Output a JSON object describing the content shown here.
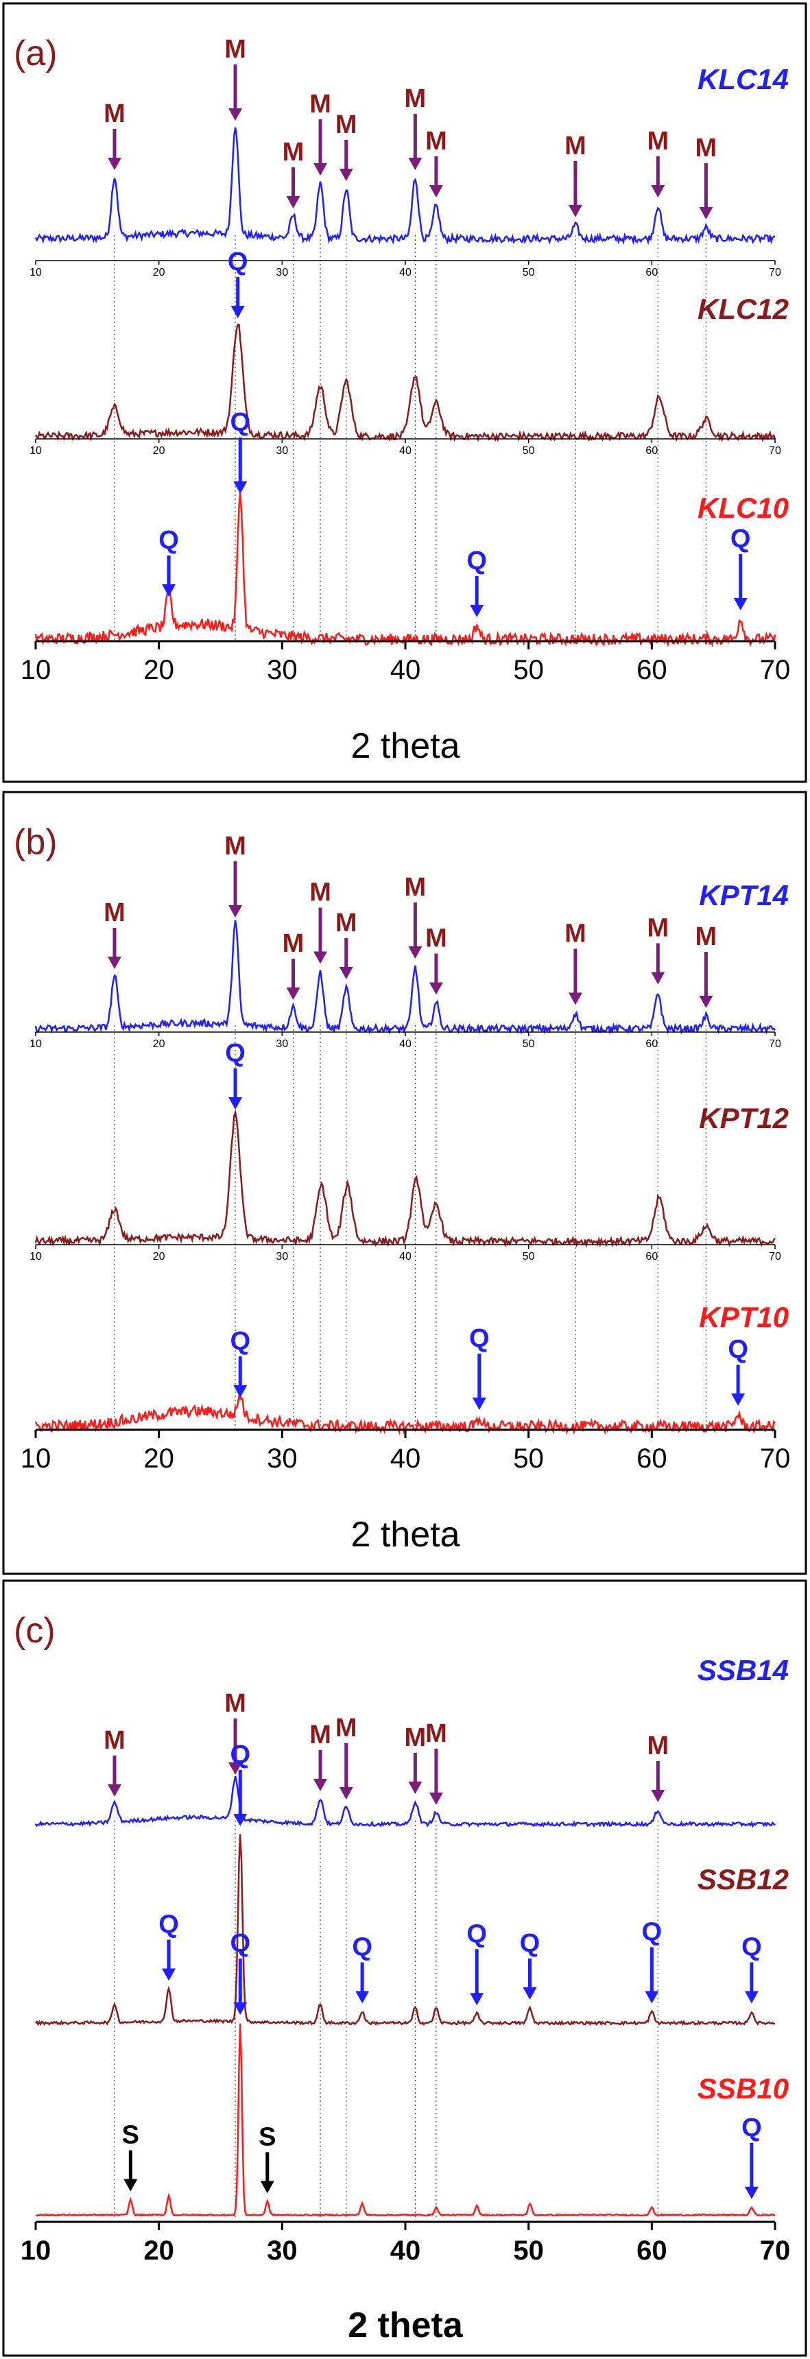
{
  "figure": {
    "panels": [
      {
        "label": "(a)",
        "xlabel": "2 theta",
        "xlim": [
          10,
          70
        ],
        "ticks": [
          10,
          20,
          30,
          40,
          50,
          60,
          70
        ],
        "traces": [
          {
            "name": "KLC14",
            "color": "#1f1fff"
          },
          {
            "name": "KLC12",
            "color": "#8b1a1a"
          },
          {
            "name": "KLC10",
            "color": "#ff1a1a"
          }
        ]
      },
      {
        "label": "(b)",
        "xlabel": "2 theta",
        "xlim": [
          10,
          70
        ],
        "ticks": [
          10,
          20,
          30,
          40,
          50,
          60,
          70
        ],
        "traces": [
          {
            "name": "KPT14",
            "color": "#1f1fff"
          },
          {
            "name": "KPT12",
            "color": "#8b1a1a"
          },
          {
            "name": "KPT10",
            "color": "#ff1a1a"
          }
        ]
      },
      {
        "label": "(c)",
        "xlabel": "2 theta",
        "xlim": [
          10,
          70
        ],
        "ticks": [
          10,
          20,
          30,
          40,
          50,
          60,
          70
        ],
        "traces": [
          {
            "name": "SSB14",
            "color": "#1f1fff"
          },
          {
            "name": "SSB12",
            "color": "#8b1a1a"
          },
          {
            "name": "SSB10",
            "color": "#ff1a1a"
          }
        ]
      }
    ],
    "colors": {
      "mullite_marker": "#7a1e7a",
      "mullite_text": "#8b1a1a",
      "quartz": "#1f1fff",
      "s_marker": "#000000",
      "label": "#8b1a1a"
    }
  },
  "chart_data": [
    {
      "type": "line",
      "panel": "(a)",
      "xlabel": "2 theta",
      "ylabel": "",
      "xlim": [
        10,
        70
      ],
      "series": [
        {
          "name": "KLC14",
          "peaks": [
            [
              16.4,
              0.55
            ],
            [
              26.2,
              1.0
            ],
            [
              30.9,
              0.2
            ],
            [
              33.1,
              0.5
            ],
            [
              35.2,
              0.45
            ],
            [
              40.8,
              0.55
            ],
            [
              42.5,
              0.3
            ],
            [
              53.8,
              0.12
            ],
            [
              60.5,
              0.3
            ],
            [
              64.4,
              0.1
            ]
          ]
        },
        {
          "name": "KLC12",
          "peaks": [
            [
              16.4,
              0.25
            ],
            [
              26.4,
              1.0
            ],
            [
              33.1,
              0.45
            ],
            [
              35.2,
              0.5
            ],
            [
              40.8,
              0.55
            ],
            [
              42.5,
              0.3
            ],
            [
              60.6,
              0.35
            ],
            [
              64.4,
              0.15
            ]
          ]
        },
        {
          "name": "KLC10",
          "peaks": [
            [
              20.8,
              0.25
            ],
            [
              26.6,
              1.0
            ],
            [
              45.8,
              0.1
            ],
            [
              67.2,
              0.15
            ]
          ]
        }
      ],
      "annotations": {
        "KLC14": [
          {
            "text": "M",
            "x": 16.4
          },
          {
            "text": "M",
            "x": 26.2
          },
          {
            "text": "M",
            "x": 30.9
          },
          {
            "text": "M",
            "x": 33.1
          },
          {
            "text": "M",
            "x": 35.2
          },
          {
            "text": "M",
            "x": 40.8
          },
          {
            "text": "M",
            "x": 42.5
          },
          {
            "text": "M",
            "x": 53.8
          },
          {
            "text": "M",
            "x": 60.5
          },
          {
            "text": "M",
            "x": 64.4
          }
        ],
        "KLC12": [
          {
            "text": "Q",
            "x": 26.4
          }
        ],
        "KLC10": [
          {
            "text": "Q",
            "x": 20.8
          },
          {
            "text": "Q",
            "x": 26.6
          },
          {
            "text": "Q",
            "x": 45.8
          },
          {
            "text": "Q",
            "x": 67.2
          }
        ]
      }
    },
    {
      "type": "line",
      "panel": "(b)",
      "xlabel": "2 theta",
      "ylabel": "",
      "xlim": [
        10,
        70
      ],
      "series": [
        {
          "name": "KPT14",
          "peaks": [
            [
              16.4,
              0.5
            ],
            [
              26.2,
              1.0
            ],
            [
              30.9,
              0.2
            ],
            [
              33.1,
              0.55
            ],
            [
              35.2,
              0.4
            ],
            [
              40.8,
              0.6
            ],
            [
              42.5,
              0.25
            ],
            [
              53.8,
              0.15
            ],
            [
              60.5,
              0.35
            ],
            [
              64.4,
              0.12
            ]
          ]
        },
        {
          "name": "KPT12",
          "peaks": [
            [
              16.4,
              0.25
            ],
            [
              26.2,
              1.0
            ],
            [
              33.2,
              0.45
            ],
            [
              35.3,
              0.45
            ],
            [
              40.9,
              0.5
            ],
            [
              42.5,
              0.3
            ],
            [
              60.6,
              0.35
            ],
            [
              64.4,
              0.12
            ]
          ]
        },
        {
          "name": "KPT10",
          "peaks": [
            [
              26.6,
              0.5
            ],
            [
              46.0,
              0.2
            ],
            [
              67.0,
              0.3
            ]
          ]
        }
      ],
      "annotations": {
        "KPT14": [
          {
            "text": "M",
            "x": 16.4
          },
          {
            "text": "M",
            "x": 26.2
          },
          {
            "text": "M",
            "x": 30.9
          },
          {
            "text": "M",
            "x": 33.1
          },
          {
            "text": "M",
            "x": 35.2
          },
          {
            "text": "M",
            "x": 40.8
          },
          {
            "text": "M",
            "x": 42.5
          },
          {
            "text": "M",
            "x": 53.8
          },
          {
            "text": "M",
            "x": 60.5
          },
          {
            "text": "M",
            "x": 64.4
          }
        ],
        "KPT12": [
          {
            "text": "Q",
            "x": 26.2
          }
        ],
        "KPT10": [
          {
            "text": "Q",
            "x": 26.6
          },
          {
            "text": "Q",
            "x": 46.0
          },
          {
            "text": "Q",
            "x": 67.0
          }
        ]
      }
    },
    {
      "type": "line",
      "panel": "(c)",
      "xlabel": "2 theta",
      "ylabel": "",
      "xlim": [
        10,
        70
      ],
      "series": [
        {
          "name": "SSB14",
          "peaks": [
            [
              16.4,
              0.35
            ],
            [
              26.2,
              0.75
            ],
            [
              33.1,
              0.45
            ],
            [
              35.2,
              0.3
            ],
            [
              40.8,
              0.4
            ],
            [
              42.5,
              0.2
            ],
            [
              60.5,
              0.25
            ]
          ]
        },
        {
          "name": "SSB12",
          "peaks": [
            [
              16.4,
              0.1
            ],
            [
              20.8,
              0.18
            ],
            [
              26.6,
              1.0
            ],
            [
              33.1,
              0.1
            ],
            [
              36.5,
              0.06
            ],
            [
              40.8,
              0.08
            ],
            [
              42.5,
              0.08
            ],
            [
              45.8,
              0.05
            ],
            [
              50.1,
              0.08
            ],
            [
              60.0,
              0.06
            ],
            [
              68.1,
              0.06
            ]
          ]
        },
        {
          "name": "SSB10",
          "peaks": [
            [
              17.7,
              0.08
            ],
            [
              20.8,
              0.1
            ],
            [
              26.6,
              1.0
            ],
            [
              28.8,
              0.07
            ],
            [
              36.5,
              0.06
            ],
            [
              42.5,
              0.04
            ],
            [
              45.8,
              0.05
            ],
            [
              50.1,
              0.06
            ],
            [
              60.0,
              0.04
            ],
            [
              68.1,
              0.04
            ]
          ]
        }
      ],
      "annotations": {
        "SSB14": [
          {
            "text": "M",
            "x": 16.4
          },
          {
            "text": "M",
            "x": 26.2
          },
          {
            "text": "M",
            "x": 33.1
          },
          {
            "text": "M",
            "x": 35.2
          },
          {
            "text": "M",
            "x": 40.8
          },
          {
            "text": "M",
            "x": 42.5
          },
          {
            "text": "M",
            "x": 60.5
          }
        ],
        "SSB12": [
          {
            "text": "Q",
            "x": 20.8
          },
          {
            "text": "Q",
            "x": 26.6
          },
          {
            "text": "Q",
            "x": 36.5
          },
          {
            "text": "Q",
            "x": 45.8
          },
          {
            "text": "Q",
            "x": 50.1
          },
          {
            "text": "Q",
            "x": 60.0
          },
          {
            "text": "Q",
            "x": 68.1
          }
        ],
        "SSB10": [
          {
            "text": "S",
            "x": 17.7
          },
          {
            "text": "Q",
            "x": 26.6
          },
          {
            "text": "S",
            "x": 28.8
          },
          {
            "text": "Q",
            "x": 68.1
          }
        ]
      }
    }
  ]
}
